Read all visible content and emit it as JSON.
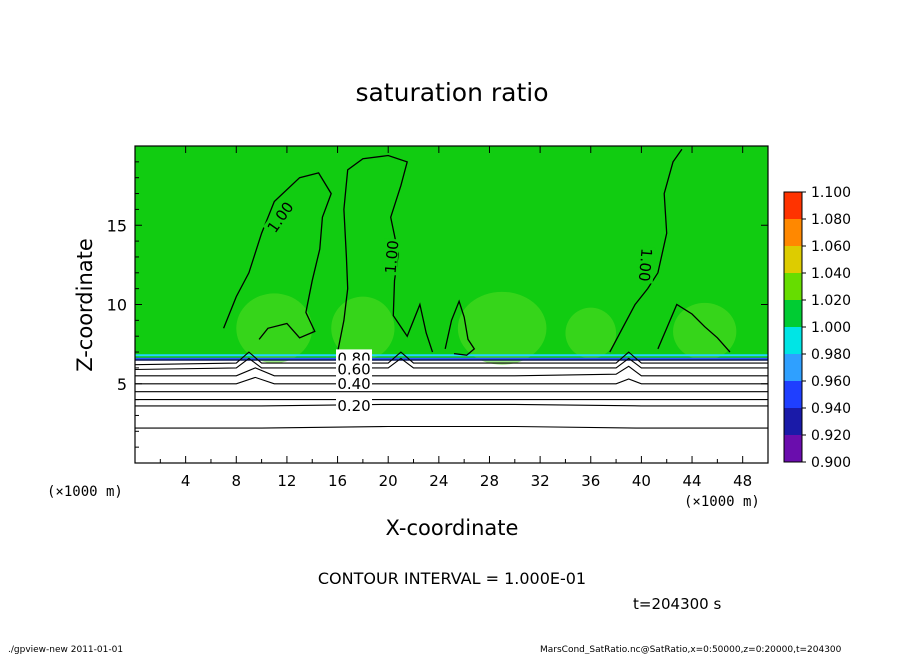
{
  "chart_data": {
    "type": "heatmap",
    "title": "saturation ratio",
    "xlabel": "X-coordinate",
    "ylabel": "Z-coordinate",
    "x_unit": "(×1000 m)",
    "y_unit": "(×1000 m)",
    "xlim": [
      0,
      50
    ],
    "ylim": [
      0,
      20
    ],
    "x_ticks": [
      4,
      8,
      12,
      16,
      20,
      24,
      28,
      32,
      36,
      40,
      44,
      48
    ],
    "y_ticks": [
      5,
      10,
      15
    ],
    "x_ticklabels": [
      "4",
      "8",
      "12",
      "16",
      "20",
      "24",
      "28",
      "32",
      "36",
      "40",
      "44",
      "48"
    ],
    "y_ticklabels": [
      "5",
      "10",
      "15"
    ],
    "colorbar": {
      "levels": [
        "0.900",
        "0.920",
        "0.940",
        "0.960",
        "0.980",
        "1.000",
        "1.020",
        "1.040",
        "1.060",
        "1.080",
        "1.100"
      ],
      "colors": [
        "#6a0dad",
        "#1a1aa8",
        "#1f3fff",
        "#2fa0ff",
        "#00e5e5",
        "#00cc33",
        "#66dd00",
        "#ddcc00",
        "#ff8800",
        "#ff3300",
        "#ff9999"
      ]
    },
    "contours": {
      "interval_text": "CONTOUR INTERVAL = 1.000E-01",
      "labels": [
        "1.00",
        "1.00",
        "1.00",
        "0.80",
        "0.60",
        "0.40",
        "0.20"
      ],
      "lines": [
        {
          "level": 0.2,
          "points": [
            [
              0,
              2.2
            ],
            [
              10,
              2.2
            ],
            [
              20,
              2.3
            ],
            [
              30,
              2.3
            ],
            [
              40,
              2.2
            ],
            [
              50,
              2.2
            ]
          ]
        },
        {
          "level": 0.2,
          "points": [
            [
              0,
              3.6
            ],
            [
              10,
              3.6
            ],
            [
              20,
              3.7
            ],
            [
              30,
              3.7
            ],
            [
              40,
              3.6
            ],
            [
              50,
              3.6
            ]
          ]
        },
        {
          "level": 0.2,
          "points": [
            [
              0,
              4.0
            ],
            [
              10,
              4.0
            ],
            [
              20,
              4.0
            ],
            [
              30,
              4.0
            ],
            [
              40,
              4.0
            ],
            [
              50,
              4.0
            ]
          ]
        },
        {
          "level": 0.3,
          "points": [
            [
              0,
              4.5
            ],
            [
              10,
              4.5
            ],
            [
              20,
              4.5
            ],
            [
              30,
              4.5
            ],
            [
              40,
              4.5
            ],
            [
              50,
              4.5
            ]
          ]
        },
        {
          "level": 0.4,
          "points": [
            [
              0,
              5.0
            ],
            [
              8,
              5.0
            ],
            [
              9.5,
              5.4
            ],
            [
              11,
              5.0
            ],
            [
              30,
              5.0
            ],
            [
              38,
              5.0
            ],
            [
              39,
              5.3
            ],
            [
              40,
              5.0
            ],
            [
              50,
              5.0
            ]
          ]
        },
        {
          "level": 0.5,
          "points": [
            [
              0,
              5.5
            ],
            [
              8,
              5.5
            ],
            [
              9.5,
              6.0
            ],
            [
              11,
              5.5
            ],
            [
              30,
              5.5
            ],
            [
              38,
              5.6
            ],
            [
              39,
              6.1
            ],
            [
              40,
              5.5
            ],
            [
              50,
              5.5
            ]
          ]
        },
        {
          "level": 0.6,
          "points": [
            [
              0,
              5.9
            ],
            [
              8,
              6.0
            ],
            [
              9,
              6.6
            ],
            [
              10,
              6.0
            ],
            [
              20,
              6.0
            ],
            [
              21,
              6.6
            ],
            [
              22,
              6.0
            ],
            [
              38,
              6.0
            ],
            [
              39,
              6.6
            ],
            [
              40,
              6.0
            ],
            [
              50,
              6.0
            ]
          ]
        },
        {
          "level": 0.7,
          "points": [
            [
              0,
              6.2
            ],
            [
              8,
              6.3
            ],
            [
              9,
              7.0
            ],
            [
              10,
              6.3
            ],
            [
              20,
              6.3
            ],
            [
              21,
              7.0
            ],
            [
              22,
              6.3
            ],
            [
              38,
              6.3
            ],
            [
              39,
              7.0
            ],
            [
              40,
              6.3
            ],
            [
              50,
              6.3
            ]
          ]
        },
        {
          "level": 0.8,
          "points": [
            [
              0,
              6.5
            ],
            [
              50,
              6.5
            ]
          ]
        },
        {
          "level": 1.0,
          "points": [
            [
              7,
              8.5
            ],
            [
              8,
              10.5
            ],
            [
              9,
              12
            ],
            [
              10,
              14.5
            ],
            [
              11,
              16.5
            ],
            [
              13,
              18.0
            ],
            [
              14.5,
              18.3
            ],
            [
              15.5,
              17.0
            ],
            [
              14.8,
              15.5
            ],
            [
              14.6,
              13.5
            ],
            [
              14.0,
              11.5
            ],
            [
              13.5,
              9.5
            ],
            [
              14.2,
              8.3
            ],
            [
              13.0,
              7.9
            ],
            [
              12.0,
              8.8
            ],
            [
              10.5,
              8.5
            ],
            [
              9.8,
              7.8
            ]
          ]
        },
        {
          "level": 1.0,
          "points": [
            [
              16,
              7.0
            ],
            [
              16.5,
              9.0
            ],
            [
              16.8,
              11.0
            ],
            [
              16.7,
              13.0
            ],
            [
              16.5,
              16.0
            ],
            [
              16.8,
              18.5
            ],
            [
              18,
              19.2
            ],
            [
              20,
              19.4
            ],
            [
              21.5,
              19.0
            ],
            [
              21.0,
              17.5
            ],
            [
              20.2,
              15.5
            ],
            [
              20.8,
              13.2
            ],
            [
              20.5,
              11.5
            ],
            [
              20.4,
              9.3
            ],
            [
              21.5,
              8.0
            ],
            [
              22.5,
              10.0
            ],
            [
              23,
              8.2
            ],
            [
              23.5,
              7.0
            ]
          ]
        },
        {
          "level": 1.0,
          "points": [
            [
              24.5,
              7.2
            ],
            [
              25,
              9.0
            ],
            [
              25.6,
              10.2
            ],
            [
              26,
              9.2
            ],
            [
              26.3,
              7.8
            ],
            [
              26.8,
              7.2
            ],
            [
              26.2,
              6.8
            ],
            [
              25.2,
              6.9
            ]
          ]
        },
        {
          "level": 1.0,
          "points": [
            [
              37.5,
              7.0
            ],
            [
              38.5,
              8.5
            ],
            [
              39.5,
              10.0
            ],
            [
              40.5,
              11.0
            ],
            [
              41.3,
              12.0
            ],
            [
              42,
              14.5
            ],
            [
              41.8,
              17.0
            ],
            [
              42.5,
              19.0
            ],
            [
              43.2,
              19.8
            ]
          ]
        },
        {
          "level": 1.0,
          "points": [
            [
              41.3,
              7.2
            ],
            [
              42,
              8.5
            ],
            [
              42.8,
              10.0
            ],
            [
              44,
              9.4
            ],
            [
              45,
              8.6
            ],
            [
              46,
              7.9
            ],
            [
              47,
              7.0
            ]
          ]
        }
      ]
    },
    "annotations": {
      "time": "t=204300 s",
      "left_footer": "./gpview-new  2011-01-01",
      "right_footer": "MarsCond_SatRatio.nc@SatRatio,x=0:50000,z=0:20000,t=204300"
    }
  }
}
